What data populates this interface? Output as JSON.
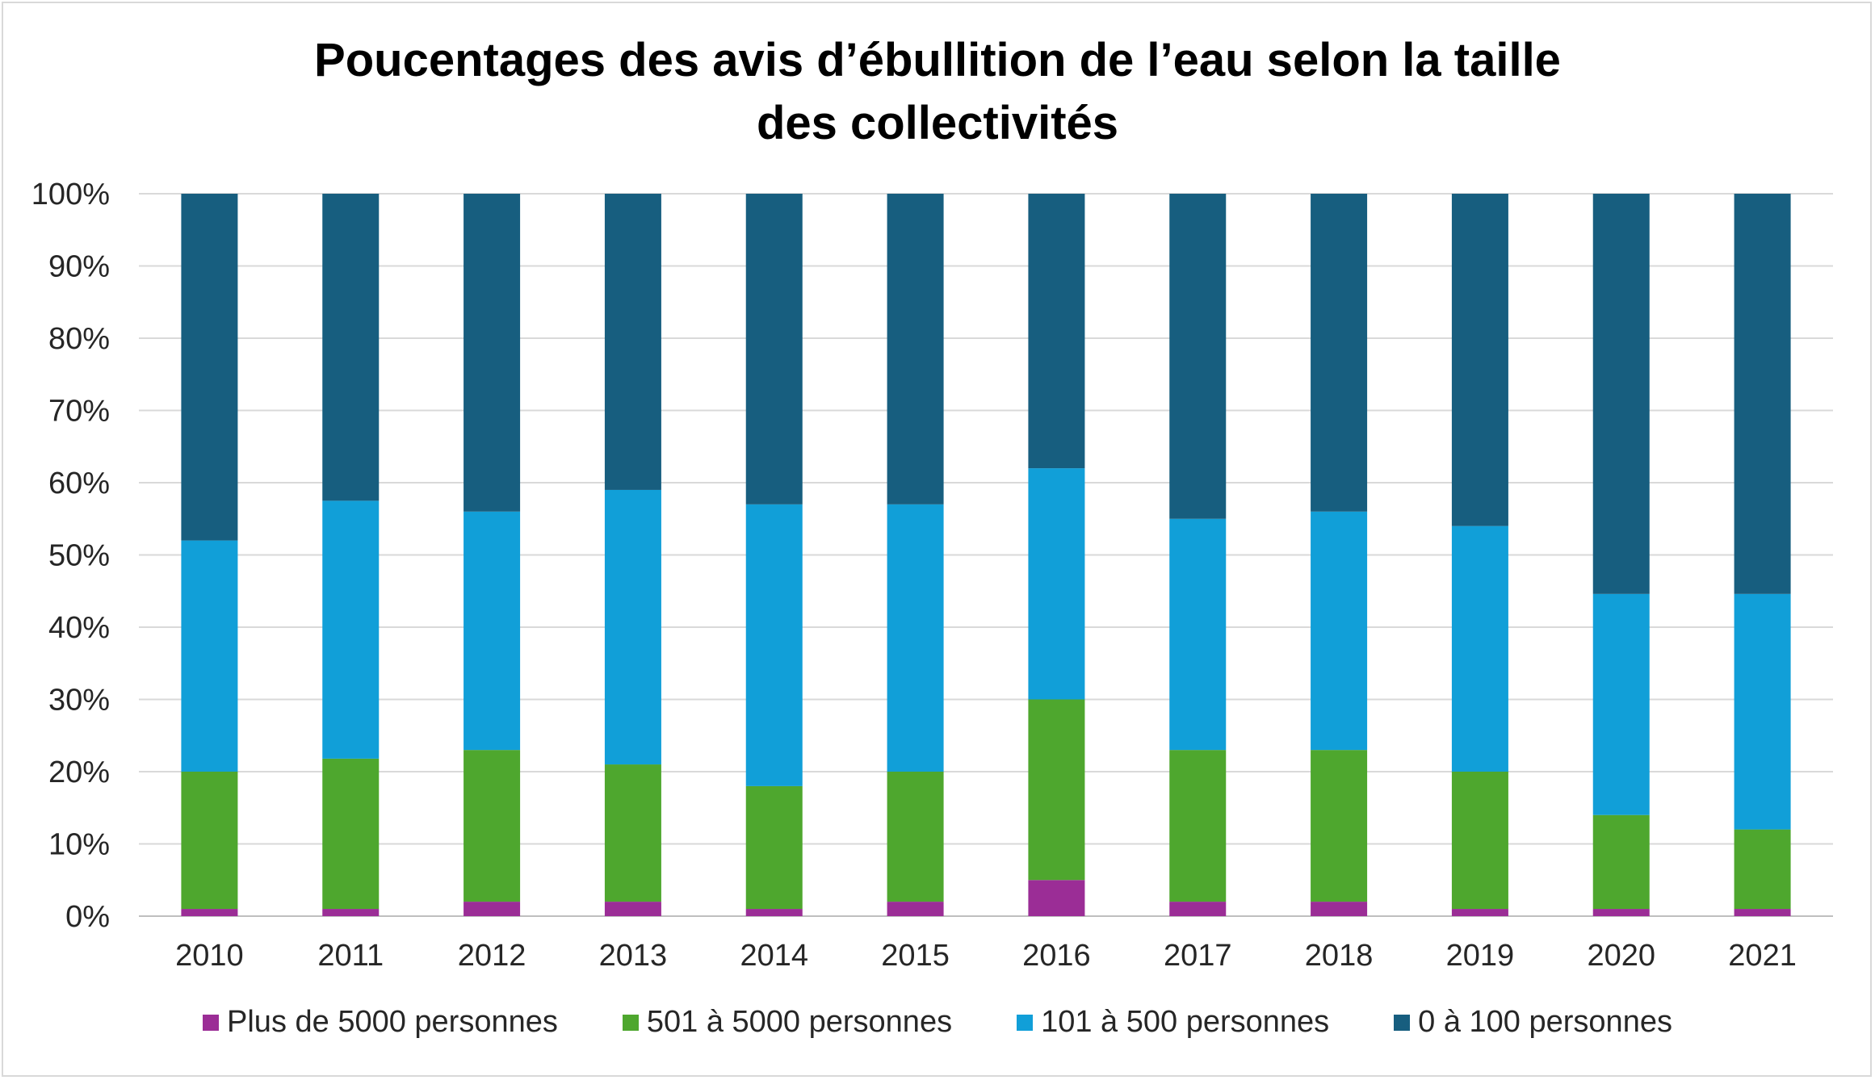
{
  "chart_data": {
    "type": "bar",
    "stacked": true,
    "title_line1": "Poucentages des avis d’ébullition de l’eau selon la taille",
    "title_line2": "des collectivités",
    "xlabel": "",
    "ylabel": "",
    "ylim": [
      0,
      100
    ],
    "yticks": [
      "0%",
      "10%",
      "20%",
      "30%",
      "40%",
      "50%",
      "60%",
      "70%",
      "80%",
      "90%",
      "100%"
    ],
    "grid": true,
    "legend_position": "bottom",
    "categories": [
      "2010",
      "2011",
      "2012",
      "2013",
      "2014",
      "2015",
      "2016",
      "2017",
      "2018",
      "2019",
      "2020",
      "2021"
    ],
    "series": [
      {
        "name": "Plus de 5000 personnes",
        "color": "#9b2d96",
        "values": [
          1,
          1,
          2,
          2,
          1,
          2,
          5,
          2,
          2,
          1,
          1,
          1
        ]
      },
      {
        "name": "501 à 5000 personnes",
        "color": "#4ea72e",
        "values": [
          19,
          20.8,
          21,
          19,
          17,
          18,
          25,
          21,
          21,
          19,
          13,
          11
        ]
      },
      {
        "name": "101 à 500 personnes",
        "color": "#119fd8",
        "values": [
          32,
          35.7,
          33,
          38,
          39,
          37,
          32,
          32,
          33,
          34,
          30.6,
          32.6
        ]
      },
      {
        "name": "0 à 100 personnes",
        "color": "#175e7f",
        "values": [
          48,
          42.5,
          44,
          41,
          43,
          43,
          38,
          45,
          44,
          46,
          55.4,
          55.4
        ]
      }
    ]
  }
}
